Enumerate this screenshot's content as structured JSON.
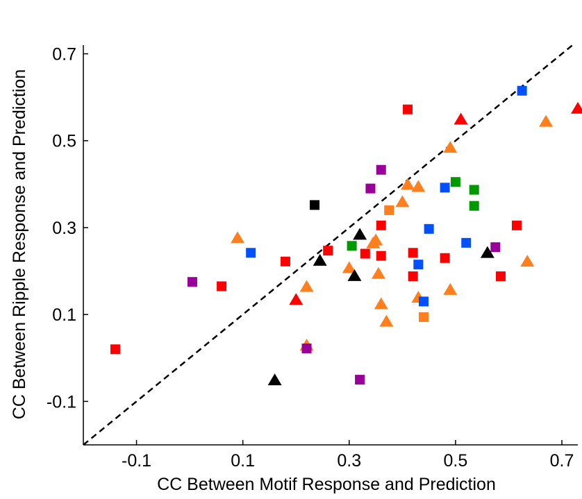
{
  "chart_data": {
    "type": "scatter",
    "xlabel": "CC Between Motif Response and Prediction",
    "ylabel": "CC Between Ripple Response and Prediction",
    "xlim": [
      -0.2,
      0.73
    ],
    "ylim": [
      -0.2,
      0.72
    ],
    "xticks": [
      "-0.1",
      "0.1",
      "0.3",
      "0.5",
      "0.7"
    ],
    "yticks": [
      "-0.1",
      "0.1",
      "0.3",
      "0.5",
      "0.7"
    ],
    "xtick_values": [
      -0.1,
      0.1,
      0.3,
      0.5,
      0.7
    ],
    "ytick_values": [
      -0.1,
      0.1,
      0.3,
      0.5,
      0.7
    ],
    "grid": false,
    "legend": "none",
    "reference_line": {
      "style": "dashed",
      "color": "#000000",
      "from": [
        -0.2,
        -0.2
      ],
      "to": [
        0.72,
        0.72
      ]
    },
    "series": [
      {
        "marker": "square",
        "color": "#ff0000",
        "points": [
          [
            -0.14,
            0.02
          ],
          [
            0.06,
            0.165
          ],
          [
            0.18,
            0.222
          ],
          [
            0.26,
            0.247
          ],
          [
            0.33,
            0.24
          ],
          [
            0.36,
            0.305
          ],
          [
            0.36,
            0.235
          ],
          [
            0.41,
            0.572
          ],
          [
            0.42,
            0.242
          ],
          [
            0.42,
            0.188
          ],
          [
            0.48,
            0.23
          ],
          [
            0.585,
            0.188
          ],
          [
            0.615,
            0.305
          ]
        ]
      },
      {
        "marker": "triangle",
        "color": "#ff0000",
        "points": [
          [
            0.2,
            0.135
          ],
          [
            0.51,
            0.55
          ],
          [
            0.73,
            0.575
          ]
        ]
      },
      {
        "marker": "triangle",
        "color": "#ff7f1e",
        "points": [
          [
            0.09,
            0.277
          ],
          [
            0.22,
            0.165
          ],
          [
            0.22,
            0.03
          ],
          [
            0.3,
            0.208
          ],
          [
            0.345,
            0.265
          ],
          [
            0.35,
            0.272
          ],
          [
            0.355,
            0.195
          ],
          [
            0.36,
            0.125
          ],
          [
            0.37,
            0.085
          ],
          [
            0.4,
            0.36
          ],
          [
            0.41,
            0.4
          ],
          [
            0.43,
            0.395
          ],
          [
            0.43,
            0.14
          ],
          [
            0.49,
            0.485
          ],
          [
            0.49,
            0.158
          ],
          [
            0.67,
            0.545
          ],
          [
            0.635,
            0.223
          ]
        ]
      },
      {
        "marker": "square",
        "color": "#ff7f1e",
        "points": [
          [
            0.375,
            0.34
          ],
          [
            0.44,
            0.094
          ]
        ]
      },
      {
        "marker": "square",
        "color": "#0050ff",
        "points": [
          [
            0.115,
            0.242
          ],
          [
            0.43,
            0.215
          ],
          [
            0.44,
            0.13
          ],
          [
            0.45,
            0.297
          ],
          [
            0.48,
            0.392
          ],
          [
            0.52,
            0.265
          ],
          [
            0.625,
            0.615
          ]
        ]
      },
      {
        "marker": "square",
        "color": "#009900",
        "points": [
          [
            0.305,
            0.258
          ],
          [
            0.5,
            0.405
          ],
          [
            0.535,
            0.387
          ],
          [
            0.535,
            0.35
          ]
        ]
      },
      {
        "marker": "square",
        "color": "#990099",
        "points": [
          [
            0.005,
            0.175
          ],
          [
            0.22,
            0.022
          ],
          [
            0.32,
            -0.05
          ],
          [
            0.34,
            0.39
          ],
          [
            0.36,
            0.433
          ],
          [
            0.575,
            0.255
          ]
        ]
      },
      {
        "marker": "square",
        "color": "#000000",
        "points": [
          [
            0.235,
            0.352
          ]
        ]
      },
      {
        "marker": "triangle",
        "color": "#000000",
        "points": [
          [
            0.16,
            -0.05
          ],
          [
            0.245,
            0.225
          ],
          [
            0.31,
            0.19
          ],
          [
            0.32,
            0.285
          ],
          [
            0.56,
            0.243
          ]
        ]
      }
    ]
  }
}
